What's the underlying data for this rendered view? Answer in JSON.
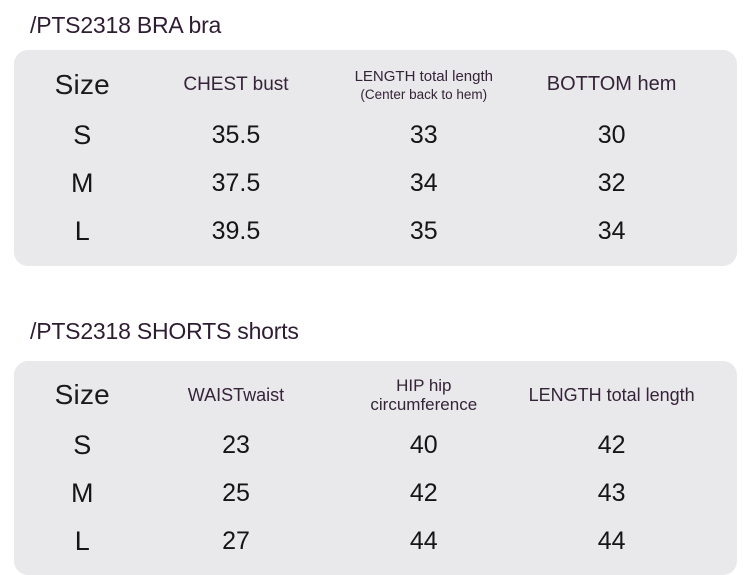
{
  "colors": {
    "page_bg": "#ffffff",
    "table_bg": "#e9e8ea",
    "heading_text": "#2e1c33",
    "header_text": "#352339",
    "data_text": "#151515"
  },
  "tables": [
    {
      "title": "/PTS2318 BRA bra",
      "columns": [
        {
          "label": "Size"
        },
        {
          "label": "CHEST bust"
        },
        {
          "label": "LENGTH total length",
          "sublabel": "(Center back to hem)"
        },
        {
          "label": "BOTTOM hem"
        }
      ],
      "rows": [
        {
          "cells": [
            "S",
            "35.5",
            "33",
            "30"
          ]
        },
        {
          "cells": [
            "M",
            "37.5",
            "34",
            "32"
          ]
        },
        {
          "cells": [
            "L",
            "39.5",
            "35",
            "34"
          ]
        }
      ]
    },
    {
      "title": "/PTS2318 SHORTS shorts",
      "columns": [
        {
          "label": "Size"
        },
        {
          "label": "WAISTwaist"
        },
        {
          "label": "HIP hip",
          "label_line2": "circumference"
        },
        {
          "label": "LENGTH total length"
        }
      ],
      "rows": [
        {
          "cells": [
            "S",
            "23",
            "40",
            "42"
          ]
        },
        {
          "cells": [
            "M",
            "25",
            "42",
            "43"
          ]
        },
        {
          "cells": [
            "L",
            "27",
            "44",
            "44"
          ]
        }
      ]
    }
  ],
  "chart_data": [
    {
      "type": "table",
      "title": "/PTS2318 BRA bra",
      "columns": [
        "Size",
        "CHEST bust",
        "LENGTH total length (Center back to hem)",
        "BOTTOM hem"
      ],
      "rows": [
        [
          "S",
          "35.5",
          "33",
          "30"
        ],
        [
          "M",
          "37.5",
          "34",
          "32"
        ],
        [
          "L",
          "39.5",
          "35",
          "34"
        ]
      ]
    },
    {
      "type": "table",
      "title": "/PTS2318 SHORTS shorts",
      "columns": [
        "Size",
        "WAISTwaist",
        "HIP hip circumference",
        "LENGTH total length"
      ],
      "rows": [
        [
          "S",
          "23",
          "40",
          "42"
        ],
        [
          "M",
          "25",
          "42",
          "43"
        ],
        [
          "L",
          "27",
          "44",
          "44"
        ]
      ]
    }
  ]
}
